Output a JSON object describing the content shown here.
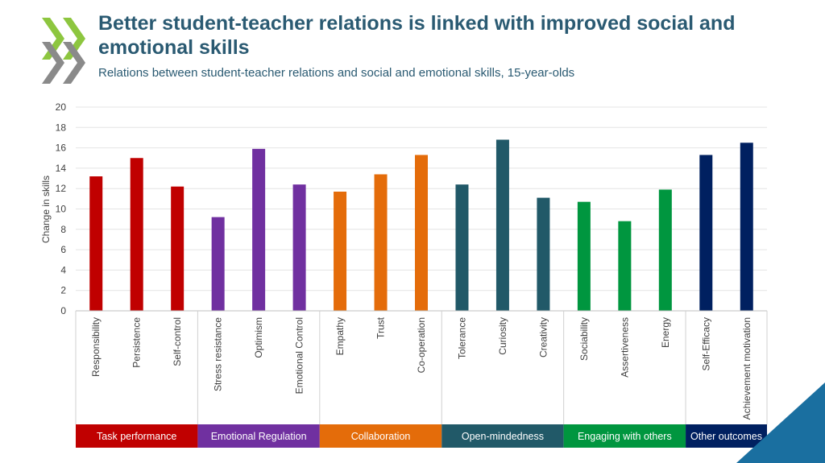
{
  "title": "Better student-teacher relations is linked with improved social and emotional skills",
  "subtitle": "Relations between student-teacher relations and social and emotional skills, 15-year-olds",
  "icons": {
    "logo": "oecd-chevron-logo",
    "corner": "corner-triangle-decoration"
  },
  "colors": {
    "title": "#2a5a72",
    "corner": "#1a6fa0"
  },
  "chart_data": {
    "type": "bar",
    "ylabel": "Change in skills",
    "ylim": [
      0,
      20
    ],
    "yticks": [
      0,
      2,
      4,
      6,
      8,
      10,
      12,
      14,
      16,
      18,
      20
    ],
    "grid": true,
    "categories": [
      "Responsibility",
      "Persistence",
      "Self-control",
      "Stress resistance",
      "Optimism",
      "Emotional Control",
      "Empathy",
      "Trust",
      "Co-operation",
      "Tolerance",
      "Curiosity",
      "Creativity",
      "Sociability",
      "Assertiveness",
      "Energy",
      "Self-Efficacy",
      "Achievement motivation"
    ],
    "values": [
      13.2,
      15.0,
      12.2,
      9.2,
      15.9,
      12.4,
      11.7,
      13.4,
      15.3,
      12.4,
      16.8,
      11.1,
      10.7,
      8.8,
      11.9,
      15.3,
      16.5
    ],
    "groups": [
      {
        "name": "Task performance",
        "start": 0,
        "count": 3,
        "color": "#c00000"
      },
      {
        "name": "Emotional Regulation",
        "start": 3,
        "count": 3,
        "color": "#7030a0"
      },
      {
        "name": "Collaboration",
        "start": 6,
        "count": 3,
        "color": "#e46c0a"
      },
      {
        "name": "Open-mindedness",
        "start": 9,
        "count": 3,
        "color": "#215968"
      },
      {
        "name": "Engaging with others",
        "start": 12,
        "count": 3,
        "color": "#00963f"
      },
      {
        "name": "Other outcomes",
        "start": 15,
        "count": 2,
        "color": "#002060"
      }
    ]
  }
}
